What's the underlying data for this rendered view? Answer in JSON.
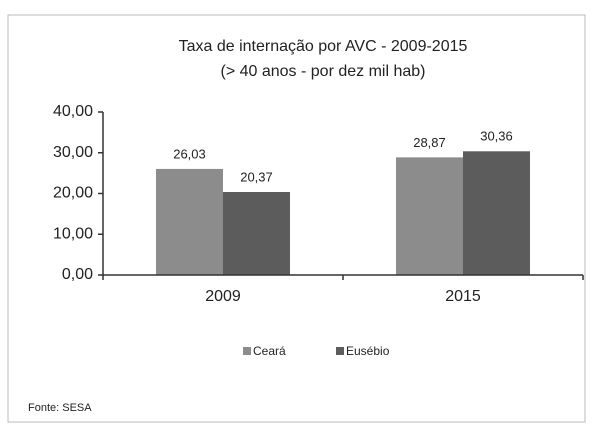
{
  "chart_data": {
    "type": "bar",
    "title": "Taxa de internação por AVC - 2009-2015",
    "subtitle": "(> 40 anos - por dez mil hab)",
    "categories": [
      "2009",
      "2015"
    ],
    "series": [
      {
        "name": "Ceará",
        "color": "#8c8c8c",
        "values": [
          26.03,
          28.87
        ],
        "value_labels": [
          "26,03",
          "28,87"
        ]
      },
      {
        "name": "Eusébio",
        "color": "#5c5c5c",
        "values": [
          20.37,
          30.36
        ],
        "value_labels": [
          "20,37",
          "30,36"
        ]
      }
    ],
    "ylim": [
      0,
      40
    ],
    "yticks": [
      {
        "value": 0,
        "label": "0,00"
      },
      {
        "value": 10,
        "label": "10,00"
      },
      {
        "value": 20,
        "label": "20,00"
      },
      {
        "value": 30,
        "label": "30,00"
      },
      {
        "value": 40,
        "label": "40,00"
      }
    ],
    "grid": false,
    "legend": "bottom",
    "source": "Fonte: SESA"
  }
}
